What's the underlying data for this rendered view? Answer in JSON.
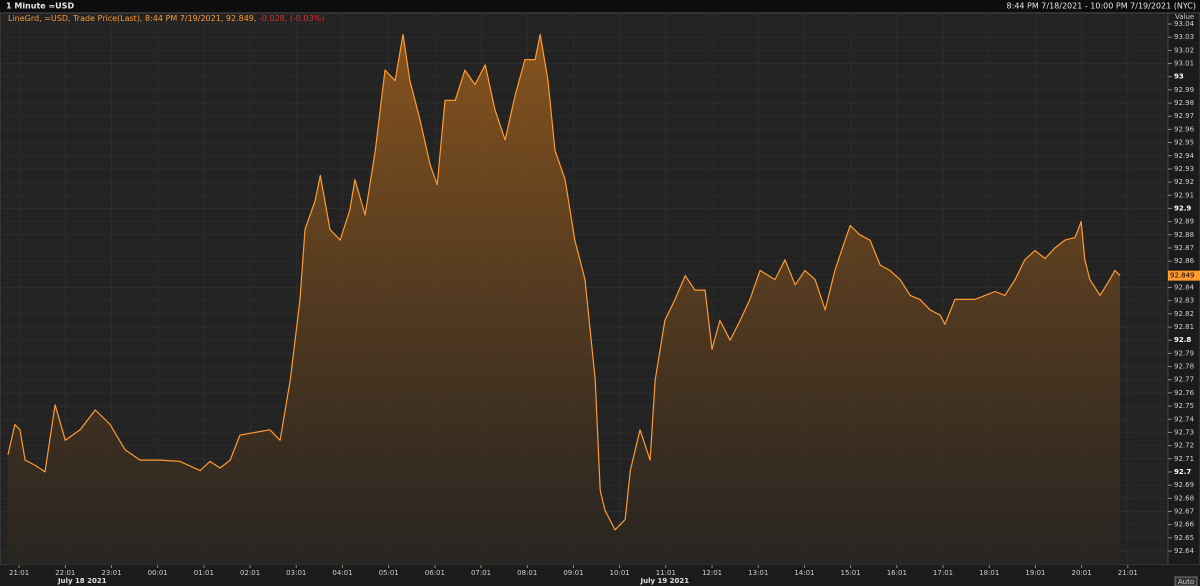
{
  "header": {
    "title": "1 Minute =USD",
    "range": "8:44 PM 7/18/2021 - 10:00 PM 7/19/2021 (NYC)"
  },
  "chart_data": {
    "type": "area",
    "legend": "LineGrd, =USD, Trade Price(Last), 8:44 PM 7/19/2021, 92.849,",
    "change": "-0.028, (-0.03%)",
    "y_axis_label": "Value",
    "scale_mode": "Auto",
    "color": "#ff9a2e",
    "grid": true,
    "last_value": 92.849,
    "date_labels": [
      "July 18 2021",
      "July 19 2021"
    ],
    "xlim": [
      -0.24,
      24.87
    ],
    "xticks": [
      {
        "value": 0,
        "label": "21:01"
      },
      {
        "value": 1,
        "label": "22:01"
      },
      {
        "value": 2,
        "label": "23:01"
      },
      {
        "value": 3,
        "label": "00:01"
      },
      {
        "value": 4,
        "label": "01:01"
      },
      {
        "value": 5,
        "label": "02:01"
      },
      {
        "value": 6,
        "label": "03:01"
      },
      {
        "value": 7,
        "label": "04:01"
      },
      {
        "value": 8,
        "label": "05:01"
      },
      {
        "value": 9,
        "label": "06:01"
      },
      {
        "value": 10,
        "label": "07:01"
      },
      {
        "value": 11,
        "label": "08:01"
      },
      {
        "value": 12,
        "label": "09:01"
      },
      {
        "value": 13,
        "label": "10:01"
      },
      {
        "value": 14,
        "label": "11:01"
      },
      {
        "value": 15,
        "label": "12:01"
      },
      {
        "value": 16,
        "label": "13:01"
      },
      {
        "value": 17,
        "label": "14:01"
      },
      {
        "value": 18,
        "label": "15:01"
      },
      {
        "value": 19,
        "label": "16:01"
      },
      {
        "value": 20,
        "label": "17:01"
      },
      {
        "value": 21,
        "label": "18:01"
      },
      {
        "value": 22,
        "label": "19:01"
      },
      {
        "value": 23,
        "label": "20:01"
      },
      {
        "value": 24,
        "label": "21:01"
      }
    ],
    "ylim": [
      92.64,
      93.04
    ],
    "yticks": [
      93.04,
      93.03,
      93.02,
      93.01,
      93,
      92.99,
      92.98,
      92.97,
      92.96,
      92.95,
      92.94,
      92.93,
      92.92,
      92.91,
      92.9,
      92.89,
      92.88,
      92.87,
      92.86,
      92.85,
      92.84,
      92.83,
      92.82,
      92.81,
      92.8,
      92.79,
      92.78,
      92.77,
      92.76,
      92.75,
      92.74,
      92.73,
      92.72,
      92.71,
      92.7,
      92.69,
      92.68,
      92.67,
      92.66,
      92.65,
      92.64
    ],
    "x": [
      -0.24,
      -0.09,
      0.02,
      0.13,
      0.35,
      0.56,
      0.78,
      1.0,
      1.32,
      1.65,
      1.97,
      2.29,
      2.62,
      3.05,
      3.48,
      3.92,
      4.13,
      4.35,
      4.57,
      4.78,
      5.11,
      5.43,
      5.65,
      5.87,
      6.08,
      6.19,
      6.41,
      6.52,
      6.73,
      6.95,
      7.16,
      7.27,
      7.49,
      7.71,
      7.92,
      8.14,
      8.31,
      8.46,
      8.68,
      8.9,
      9.05,
      9.22,
      9.44,
      9.65,
      9.87,
      10.09,
      10.3,
      10.52,
      10.74,
      10.95,
      11.17,
      11.28,
      11.45,
      11.6,
      11.82,
      12.03,
      12.25,
      12.47,
      12.58,
      12.68,
      12.9,
      13.12,
      13.23,
      13.44,
      13.66,
      13.77,
      13.98,
      14.2,
      14.42,
      14.63,
      14.85,
      15.0,
      15.17,
      15.39,
      15.61,
      15.82,
      16.04,
      16.36,
      16.58,
      16.8,
      17.01,
      17.23,
      17.45,
      17.66,
      17.88,
      17.99,
      18.2,
      18.42,
      18.64,
      18.85,
      19.07,
      19.29,
      19.5,
      19.72,
      19.94,
      20.04,
      20.26,
      20.48,
      20.69,
      20.91,
      21.13,
      21.34,
      21.56,
      21.77,
      21.99,
      22.21,
      22.42,
      22.64,
      22.86,
      22.99,
      23.07,
      23.18,
      23.4,
      23.61,
      23.72,
      23.83
    ],
    "values": [
      92.713,
      92.736,
      92.732,
      92.709,
      92.705,
      92.7,
      92.751,
      92.724,
      92.732,
      92.747,
      92.736,
      92.717,
      92.709,
      92.709,
      92.708,
      92.701,
      92.708,
      92.703,
      92.709,
      92.728,
      92.73,
      92.732,
      92.724,
      92.77,
      92.831,
      92.884,
      92.906,
      92.925,
      92.884,
      92.876,
      92.899,
      92.922,
      92.895,
      92.944,
      93.005,
      92.997,
      93.032,
      92.997,
      92.967,
      92.933,
      92.918,
      92.982,
      92.982,
      93.005,
      92.994,
      93.009,
      92.975,
      92.952,
      92.986,
      93.013,
      93.013,
      93.032,
      92.997,
      92.944,
      92.922,
      92.876,
      92.846,
      92.77,
      92.686,
      92.671,
      92.656,
      92.664,
      92.701,
      92.732,
      92.709,
      92.77,
      92.815,
      92.831,
      92.849,
      92.838,
      92.838,
      92.793,
      92.815,
      92.8,
      92.815,
      92.831,
      92.853,
      92.846,
      92.861,
      92.842,
      92.853,
      92.846,
      92.823,
      92.853,
      92.876,
      92.887,
      92.88,
      92.876,
      92.857,
      92.853,
      92.846,
      92.834,
      92.831,
      92.823,
      92.819,
      92.812,
      92.831,
      92.831,
      92.831,
      92.834,
      92.837,
      92.834,
      92.846,
      92.861,
      92.868,
      92.862,
      92.87,
      92.876,
      92.878,
      92.89,
      92.861,
      92.846,
      92.834,
      92.846,
      92.853,
      92.849
    ]
  }
}
